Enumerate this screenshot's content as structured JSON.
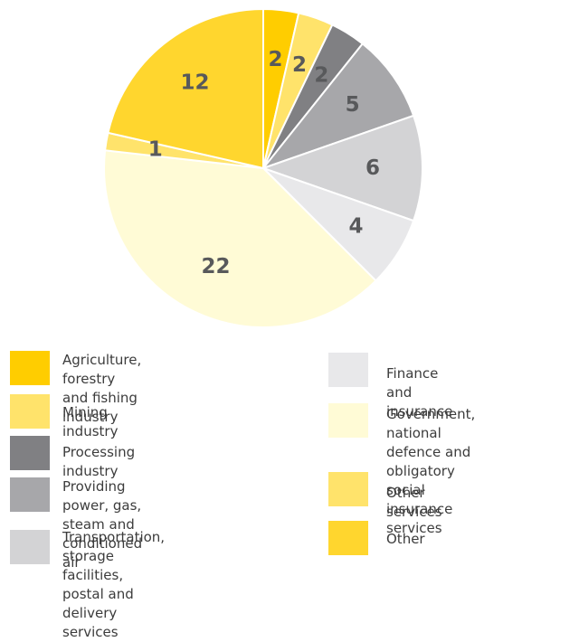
{
  "chart_data": {
    "type": "pie",
    "slices": [
      {
        "label": "Agriculture, forestry and fishing\nindustry",
        "value": 2,
        "color": "#FFCD00"
      },
      {
        "label": "Mining industry",
        "value": 2,
        "color": "#FFE36B"
      },
      {
        "label": "Processing industry",
        "value": 2,
        "color": "#808083"
      },
      {
        "label": "Providing power, gas, steam and\nconditioned air",
        "value": 5,
        "color": "#A7A7AA"
      },
      {
        "label": "Transportation, storage facilities,\npostal and delivery services",
        "value": 6,
        "color": "#D3D3D5"
      },
      {
        "label": "Finance and insurance",
        "value": 4,
        "color": "#E8E8EA"
      },
      {
        "label": "Government, national\ndefence and obligatory\nsocial insurance services",
        "value": 22,
        "color": "#FFFBD6"
      },
      {
        "label": "Other services",
        "value": 1,
        "color": "#FFE36B"
      },
      {
        "label": "Other",
        "value": 12,
        "color": "#FFD62E"
      }
    ]
  }
}
